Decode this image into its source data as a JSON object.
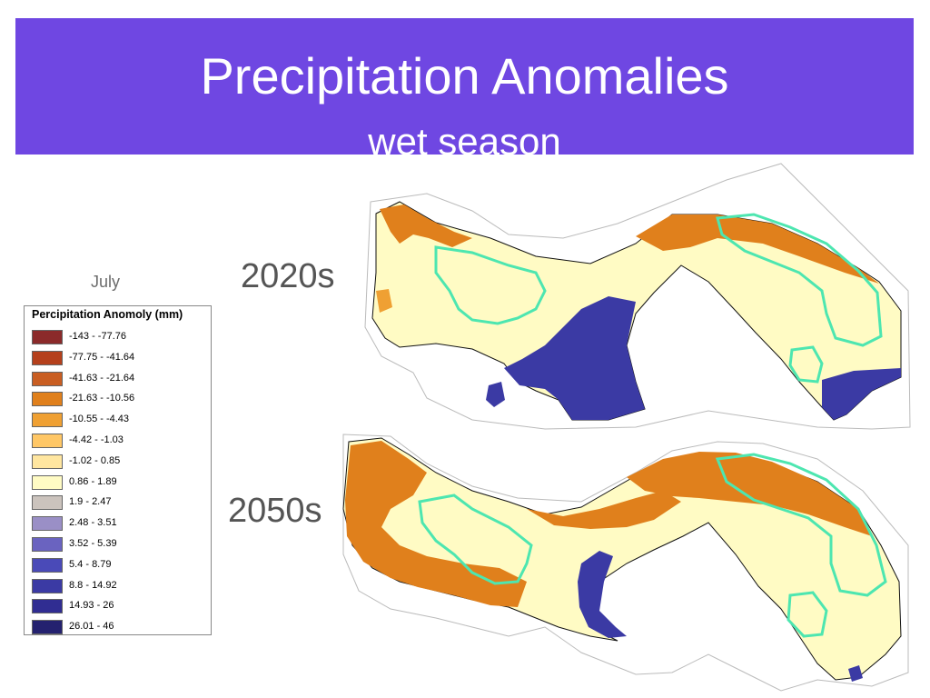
{
  "header": {
    "title": "Precipitation Anomalies",
    "subtitle": "wet season",
    "background_color": "#6f47e2"
  },
  "month_label": "July",
  "legend": {
    "title": "Percipitation Anomoly (mm)",
    "items": [
      {
        "label": "-143 - -77.76",
        "color": "#8b2a2a"
      },
      {
        "label": "-77.75 - -41.64",
        "color": "#b5401c"
      },
      {
        "label": "-41.63 - -21.64",
        "color": "#c95e22"
      },
      {
        "label": "-21.63 - -10.56",
        "color": "#e0801c"
      },
      {
        "label": "-10.55 - -4.43",
        "color": "#efa033"
      },
      {
        "label": "-4.42 - -1.03",
        "color": "#ffc766"
      },
      {
        "label": "-1.02 - 0.85",
        "color": "#ffe6a0"
      },
      {
        "label": "0.86 - 1.89",
        "color": "#fffbc4"
      },
      {
        "label": "1.9 - 2.47",
        "color": "#cbc3bd"
      },
      {
        "label": "2.48 - 3.51",
        "color": "#9a8fc6"
      },
      {
        "label": "3.52 - 5.39",
        "color": "#6a63c0"
      },
      {
        "label": "5.4 - 8.79",
        "color": "#4a4ab8"
      },
      {
        "label": "8.8 - 14.92",
        "color": "#3b3aa4"
      },
      {
        "label": "14.93 - 26",
        "color": "#302d92"
      },
      {
        "label": "26.01 - 46",
        "color": "#24216f"
      }
    ]
  },
  "maps": [
    {
      "period": "2020s"
    },
    {
      "period": "2050s"
    }
  ],
  "boundary_color": "#4de6b0"
}
